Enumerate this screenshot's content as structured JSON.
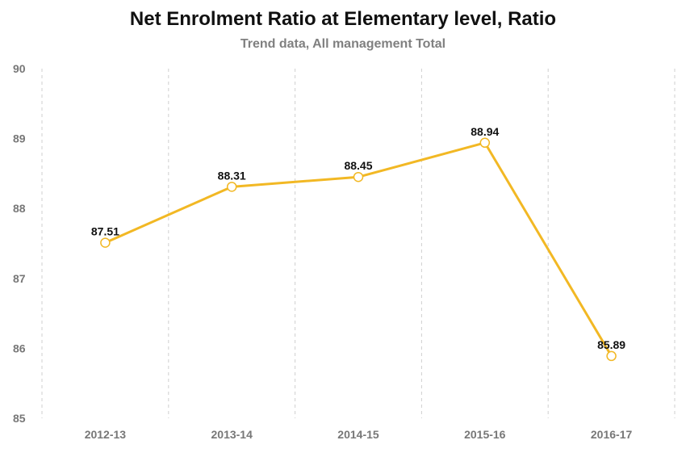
{
  "chart_data": {
    "type": "line",
    "title": "Net Enrolment Ratio at Elementary level, Ratio",
    "subtitle": "Trend data, All management Total",
    "xlabel": "",
    "ylabel": "",
    "categories": [
      "2012-13",
      "2013-14",
      "2014-15",
      "2015-16",
      "2016-17"
    ],
    "series": [
      {
        "values": [
          87.51,
          88.31,
          88.45,
          88.94,
          85.89
        ],
        "data_labels": [
          "87.51",
          "88.31",
          "88.45",
          "88.94",
          "85.89"
        ],
        "color": "#F2B824"
      }
    ],
    "ylim": [
      85,
      90
    ],
    "yticks": [
      "85",
      "86",
      "87",
      "88",
      "89",
      "90"
    ],
    "grid": "vertical dashed",
    "legend": "none"
  }
}
